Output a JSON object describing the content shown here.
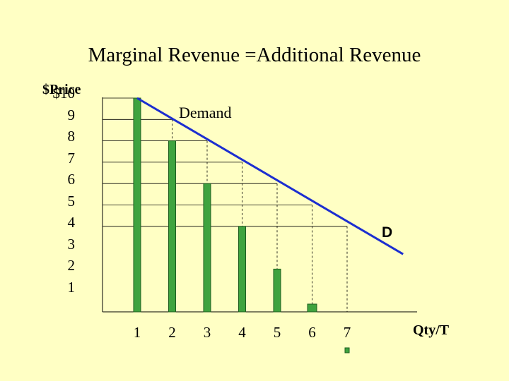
{
  "title": "Marginal Revenue =Additional Revenue",
  "colors": {
    "background": "#FFFFC4",
    "bars": "#3FA33F",
    "bar_edge": "#1E5E1E",
    "demand_line": "#1C2ED0",
    "grid": "#000000"
  },
  "chart_data": {
    "type": "bar",
    "ylabel": "$Price",
    "xlabel": "Qty/T",
    "y_tick_labels": [
      "$10",
      "9",
      "8",
      "7",
      "6",
      "5",
      "4",
      "3",
      "2",
      "1"
    ],
    "x_tick_labels": [
      "1",
      "2",
      "3",
      "4",
      "5",
      "6",
      "7"
    ],
    "ylim": [
      0,
      10
    ],
    "demand": {
      "label": "Demand",
      "line_label": "D",
      "points": [
        [
          1,
          10
        ],
        [
          2,
          9
        ],
        [
          3,
          8
        ],
        [
          4,
          7
        ],
        [
          5,
          6
        ],
        [
          6,
          5
        ],
        [
          7,
          4
        ]
      ],
      "extends_to": [
        8.6,
        2.7
      ]
    },
    "marginal_revenue": {
      "categories": [
        "1",
        "2",
        "3",
        "4",
        "5",
        "6",
        "7"
      ],
      "values": [
        10,
        8,
        6,
        4,
        2,
        0,
        -2
      ]
    }
  }
}
